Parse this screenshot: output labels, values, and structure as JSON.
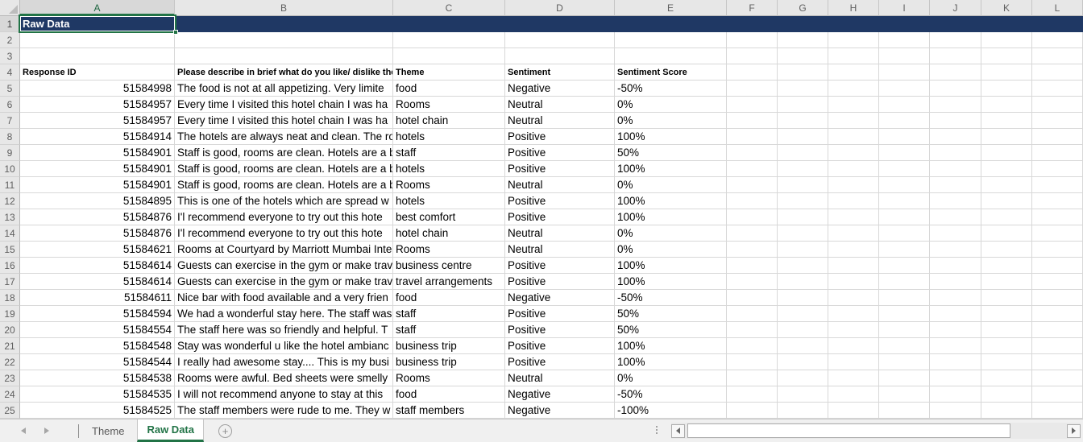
{
  "grid": {
    "column_letters": [
      "A",
      "B",
      "C",
      "D",
      "E",
      "F",
      "G",
      "H",
      "I",
      "J",
      "K",
      "L"
    ],
    "first_row_number": 1,
    "last_row_number": 25,
    "selected_cell": "A1",
    "a1_value": "Raw Data",
    "table": {
      "header_row": 4,
      "headers": {
        "response_id": "Response ID",
        "comment": "Please describe in brief what do you like/ dislike the most a",
        "theme": "Theme",
        "sentiment": "Sentiment",
        "score": "Sentiment Score"
      },
      "records": [
        {
          "row": 5,
          "response_id": "51584998",
          "comment": "The food is not at all appetizing. Very limite",
          "theme": "food",
          "sentiment": "Negative",
          "score": "-50%"
        },
        {
          "row": 6,
          "response_id": "51584957",
          "comment": "Every time I visited this hotel chain I was ha",
          "theme": "Rooms",
          "sentiment": "Neutral",
          "score": "0%"
        },
        {
          "row": 7,
          "response_id": "51584957",
          "comment": "Every time I visited this hotel chain I was ha",
          "theme": "hotel chain",
          "sentiment": "Neutral",
          "score": "0%"
        },
        {
          "row": 8,
          "response_id": "51584914",
          "comment": "The hotels are always neat and clean. The ro",
          "theme": "hotels",
          "sentiment": "Positive",
          "score": "100%"
        },
        {
          "row": 9,
          "response_id": "51584901",
          "comment": "Staff is good, rooms are clean. Hotels are a b",
          "theme": "staff",
          "sentiment": "Positive",
          "score": "50%"
        },
        {
          "row": 10,
          "response_id": "51584901",
          "comment": "Staff is good, rooms are clean. Hotels are a b",
          "theme": "hotels",
          "sentiment": "Positive",
          "score": "100%"
        },
        {
          "row": 11,
          "response_id": "51584901",
          "comment": "Staff is good, rooms are clean. Hotels are a b",
          "theme": "Rooms",
          "sentiment": "Neutral",
          "score": "0%"
        },
        {
          "row": 12,
          "response_id": "51584895",
          "comment": "This is one of the hotels which are spread w",
          "theme": "hotels",
          "sentiment": "Positive",
          "score": "100%"
        },
        {
          "row": 13,
          "response_id": "51584876",
          "comment": "I'l recommend everyone to try out this hote",
          "theme": "best comfort",
          "sentiment": "Positive",
          "score": "100%"
        },
        {
          "row": 14,
          "response_id": "51584876",
          "comment": "I'l recommend everyone to try out this hote",
          "theme": "hotel chain",
          "sentiment": "Neutral",
          "score": "0%"
        },
        {
          "row": 15,
          "response_id": "51584621",
          "comment": "Rooms at Courtyard by Marriott Mumbai Inte",
          "theme": "Rooms",
          "sentiment": "Neutral",
          "score": "0%"
        },
        {
          "row": 16,
          "response_id": "51584614",
          "comment": "Guests can exercise in the gym or make trav",
          "theme": "business centre",
          "sentiment": "Positive",
          "score": "100%"
        },
        {
          "row": 17,
          "response_id": "51584614",
          "comment": "Guests can exercise in the gym or make trav",
          "theme": "travel arrangements",
          "sentiment": "Positive",
          "score": "100%"
        },
        {
          "row": 18,
          "response_id": "51584611",
          "comment": "Nice bar with food available and a very frien",
          "theme": "food",
          "sentiment": "Negative",
          "score": "-50%"
        },
        {
          "row": 19,
          "response_id": "51584594",
          "comment": "We had a wonderful stay here. The staff was",
          "theme": "staff",
          "sentiment": "Positive",
          "score": "50%"
        },
        {
          "row": 20,
          "response_id": "51584554",
          "comment": "The staff here was so friendly and helpful. T",
          "theme": "staff",
          "sentiment": "Positive",
          "score": "50%"
        },
        {
          "row": 21,
          "response_id": "51584548",
          "comment": "Stay was wonderful u like the hotel ambianc",
          "theme": "business trip",
          "sentiment": "Positive",
          "score": "100%"
        },
        {
          "row": 22,
          "response_id": "51584544",
          "comment": "I really had awesome stay.... This is my busi",
          "theme": "business trip",
          "sentiment": "Positive",
          "score": "100%"
        },
        {
          "row": 23,
          "response_id": "51584538",
          "comment": "Rooms were awful. Bed sheets were smelly",
          "theme": "Rooms",
          "sentiment": "Neutral",
          "score": "0%"
        },
        {
          "row": 24,
          "response_id": "51584535",
          "comment": "I will not recommend anyone to stay at this",
          "theme": "food",
          "sentiment": "Negative",
          "score": "-50%"
        },
        {
          "row": 25,
          "response_id": "51584525",
          "comment": "The staff members were rude to me. They w",
          "theme": "staff members",
          "sentiment": "Negative",
          "score": "-100%"
        }
      ]
    }
  },
  "tab_bar": {
    "tabs": [
      {
        "label": "Theme",
        "active": false
      },
      {
        "label": "Raw Data",
        "active": true
      }
    ],
    "add_sheet_icon": "+"
  },
  "colors": {
    "accent_green": "#217346",
    "row1_fill": "#1F3864",
    "header_bg": "#E7E7E7",
    "gridline": "#D8D8D8"
  }
}
